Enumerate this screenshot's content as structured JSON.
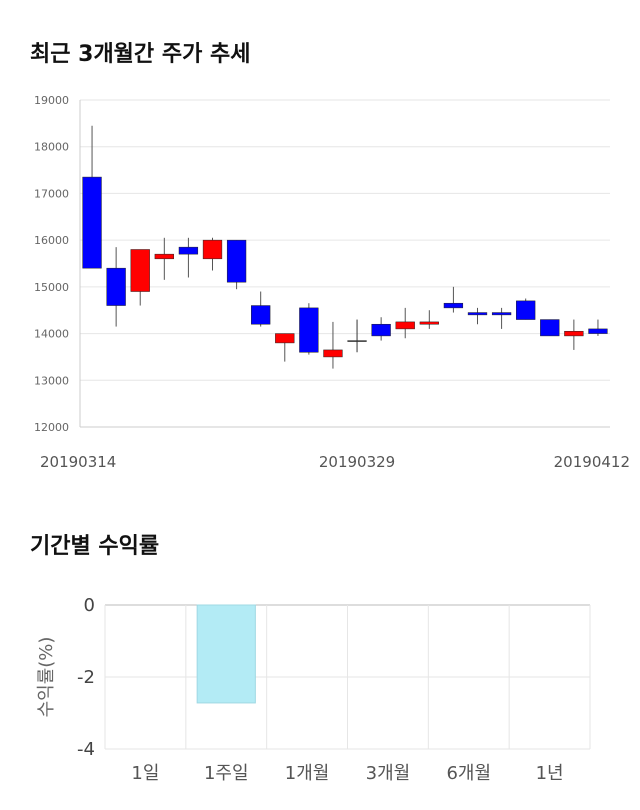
{
  "sections": {
    "price_title": "최근 3개월간 주가 추세",
    "return_title": "기간별 수익률"
  },
  "chart_data": [
    {
      "type": "candlestick",
      "title": "최근 3개월간 주가 추세",
      "ylim": [
        12000,
        19000
      ],
      "yticks": [
        "19000",
        "18000",
        "17000",
        "16000",
        "15000",
        "14000",
        "13000",
        "12000"
      ],
      "x_labels": [
        {
          "index": 0,
          "label": "20190314"
        },
        {
          "index": 11,
          "label": "20190329"
        },
        {
          "index": 21,
          "label": "20190412"
        }
      ],
      "up_color": "#ff0000",
      "down_color": "#0000ff",
      "candles": [
        {
          "open": 17350,
          "high": 18450,
          "low": 15400,
          "close": 15400
        },
        {
          "open": 15400,
          "high": 15850,
          "low": 14150,
          "close": 14600
        },
        {
          "open": 14900,
          "high": 15800,
          "low": 14600,
          "close": 15800
        },
        {
          "open": 15600,
          "high": 16050,
          "low": 15150,
          "close": 15700
        },
        {
          "open": 15850,
          "high": 16050,
          "low": 15200,
          "close": 15700
        },
        {
          "open": 15600,
          "high": 16050,
          "low": 15350,
          "close": 16000
        },
        {
          "open": 16000,
          "high": 16000,
          "low": 14950,
          "close": 15100
        },
        {
          "open": 14600,
          "high": 14900,
          "low": 14150,
          "close": 14200
        },
        {
          "open": 13800,
          "high": 14000,
          "low": 13400,
          "close": 14000
        },
        {
          "open": 14550,
          "high": 14650,
          "low": 13550,
          "close": 13600
        },
        {
          "open": 13500,
          "high": 14250,
          "low": 13250,
          "close": 13650
        },
        {
          "open": 13850,
          "high": 14300,
          "low": 13600,
          "close": 13850
        },
        {
          "open": 14200,
          "high": 14350,
          "low": 13850,
          "close": 13950
        },
        {
          "open": 14100,
          "high": 14550,
          "low": 13900,
          "close": 14250
        },
        {
          "open": 14200,
          "high": 14500,
          "low": 14100,
          "close": 14250
        },
        {
          "open": 14650,
          "high": 15000,
          "low": 14450,
          "close": 14550
        },
        {
          "open": 14450,
          "high": 14550,
          "low": 14200,
          "close": 14400
        },
        {
          "open": 14450,
          "high": 14550,
          "low": 14100,
          "close": 14400
        },
        {
          "open": 14700,
          "high": 14750,
          "low": 14300,
          "close": 14300
        },
        {
          "open": 14300,
          "high": 14300,
          "low": 13950,
          "close": 13950
        },
        {
          "open": 13950,
          "high": 14300,
          "low": 13650,
          "close": 14050
        },
        {
          "open": 14100,
          "high": 14300,
          "low": 13950,
          "close": 14000
        }
      ]
    },
    {
      "type": "bar",
      "title": "기간별 수익률",
      "ylabel": "수익률(%)",
      "ylim": [
        -4,
        0
      ],
      "yticks": [
        "0",
        "-2",
        "-4"
      ],
      "categories": [
        "1일",
        "1주일",
        "1개월",
        "3개월",
        "6개월",
        "1년"
      ],
      "values": [
        0,
        -2.72,
        0,
        0,
        0,
        0
      ],
      "bar_color": "#b3ebf5"
    }
  ]
}
